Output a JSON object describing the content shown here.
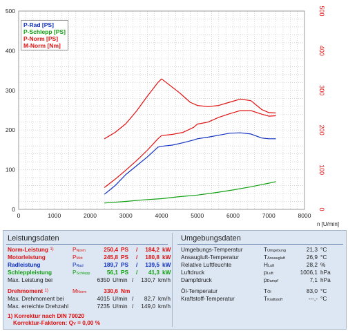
{
  "chart_data": {
    "type": "line",
    "xlabel": "n [U/min]",
    "x_ticks": [
      "0",
      "1000",
      "2000",
      "3000",
      "4000",
      "5000",
      "6000",
      "7000",
      "8000"
    ],
    "y_left_ticks": [
      "0",
      "100",
      "200",
      "300",
      "400",
      "500"
    ],
    "y_right_ticks": [
      "0",
      "100",
      "200",
      "300",
      "400",
      "500"
    ],
    "xlim": [
      0,
      8000
    ],
    "ylim": [
      0,
      500
    ],
    "grid": true,
    "legend_position": "top-left",
    "series": [
      {
        "name": "P-Rad [PS]",
        "color": "#1030c0",
        "x": [
          2400,
          2700,
          3000,
          3300,
          3600,
          3900,
          4000,
          4300,
          4600,
          4900,
          5000,
          5300,
          5600,
          5900,
          6200,
          6500,
          6800,
          7000,
          7200
        ],
        "y": [
          38,
          60,
          88,
          110,
          132,
          157,
          159,
          162,
          168,
          175,
          178,
          182,
          187,
          192,
          193,
          190,
          180,
          178,
          178
        ]
      },
      {
        "name": "P-Schlepp [PS]",
        "color": "#10a010",
        "x": [
          2400,
          3000,
          3500,
          4000,
          4500,
          5000,
          5500,
          6000,
          6500,
          7000,
          7200
        ],
        "y": [
          16,
          20,
          24,
          27,
          32,
          36,
          42,
          49,
          57,
          66,
          70
        ]
      },
      {
        "name": "P-Norm [PS]",
        "color": "#e01010",
        "x": [
          2400,
          2700,
          3000,
          3300,
          3600,
          3900,
          4000,
          4300,
          4600,
          4900,
          5000,
          5300,
          5600,
          5900,
          6200,
          6500,
          6800,
          7000,
          7200
        ],
        "y": [
          55,
          76,
          99,
          123,
          149,
          178,
          186,
          189,
          194,
          207,
          215,
          220,
          232,
          241,
          249,
          249,
          240,
          235,
          236
        ]
      },
      {
        "name": "M-Norm [Nm]",
        "color": "#e01010",
        "x": [
          2400,
          2700,
          3000,
          3300,
          3600,
          3900,
          4000,
          4200,
          4500,
          4800,
          5000,
          5300,
          5600,
          5900,
          6200,
          6500,
          6800,
          7000,
          7200
        ],
        "y": [
          178,
          194,
          216,
          248,
          285,
          320,
          329,
          315,
          294,
          270,
          262,
          259,
          262,
          270,
          278,
          274,
          252,
          244,
          243
        ]
      }
    ]
  },
  "performance": {
    "heading": "Leistungsdaten",
    "norm": {
      "label": "Norm-Leistung",
      "note": "1)",
      "sym": "P",
      "sub": "Norm",
      "ps": "250,4",
      "u1": "PS",
      "slash": "/",
      "kw": "184,2",
      "u2": "kW"
    },
    "motor": {
      "label": "Motorleistung",
      "sym": "P",
      "sub": "Mot",
      "ps": "245,8",
      "u1": "PS",
      "slash": "/",
      "kw": "180,8",
      "u2": "kW"
    },
    "rad": {
      "label": "Radleistung",
      "sym": "P",
      "sub": "Rad",
      "ps": "189,7",
      "u1": "PS",
      "slash": "/",
      "kw": "139,5",
      "u2": "kW"
    },
    "schlepp": {
      "label": "Schleppleistung",
      "sym": "P",
      "sub": "Schlepp",
      "ps": "56,1",
      "u1": "PS",
      "slash": "/",
      "kw": "41,3",
      "u2": "kW"
    },
    "maxbei": {
      "label": "Max. Leistung bei",
      "rpm": "6350",
      "u1": "U/min",
      "slash": "/",
      "kmh": "130,7",
      "u2": "km/h"
    },
    "torque": {
      "label": "Drehmoment",
      "note": "1)",
      "sym": "M",
      "sub": "Norm",
      "val": "330,6",
      "unit": "Nm"
    },
    "torquebei": {
      "label": "Max. Drehmoment bei",
      "rpm": "4015",
      "u1": "U/min",
      "slash": "/",
      "kmh": "82,7",
      "u2": "km/h"
    },
    "maxrpm": {
      "label": "Max. erreichte Drehzahl",
      "rpm": "7235",
      "u1": "U/min",
      "slash": "/",
      "kmh": "149,0",
      "u2": "km/h"
    },
    "corr1": "1) Korrektur nach DIN 70020",
    "corr2": "Korrektur-Faktoren: Q",
    "corr2_sub": "V",
    "corr2_val": "=   0,00 %"
  },
  "environment": {
    "heading": "Umgebungsdaten",
    "rows": [
      {
        "label": "Umgebungs-Temperatur",
        "sym": "T",
        "sub": "Umgebung",
        "val": "21,3",
        "unit": "°C"
      },
      {
        "label": "Ansaugluft-Temperatur",
        "sym": "T",
        "sub": "Ansaugluft",
        "val": "26,9",
        "unit": "°C"
      },
      {
        "label": "Relative Luftfeuchte",
        "sym": "H",
        "sub": "Luft",
        "val": "28,2",
        "unit": "%"
      },
      {
        "label": "Luftdruck",
        "sym": "p",
        "sub": "Luft",
        "val": "1006,1",
        "unit": "hPa"
      },
      {
        "label": "Dampfdruck",
        "sym": "p",
        "sub": "Dampf",
        "val": "7,1",
        "unit": "hPa"
      },
      {
        "label": "Öl-Temperatur",
        "sym": "T",
        "sub": "Öl",
        "val": "83,0",
        "unit": "°C"
      },
      {
        "label": "Kraftstoff-Temperatur",
        "sym": "T",
        "sub": "Kraftstoff",
        "val": "---,-",
        "unit": "°C"
      }
    ]
  }
}
